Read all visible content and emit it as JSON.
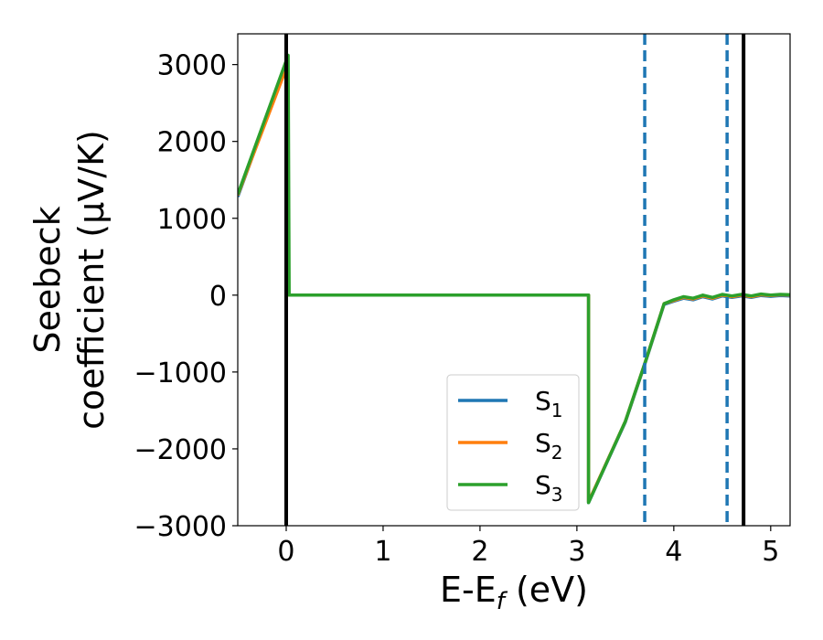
{
  "chart_data": {
    "type": "line",
    "xlabel": "E-E_f (eV)",
    "xlabel_parts": {
      "main": "E-E",
      "sub": "f",
      "unit": " (eV)"
    },
    "ylabel_lines": [
      "Seebeck",
      "coefficient  (μV/K)"
    ],
    "xlim": [
      -0.5,
      5.2
    ],
    "ylim": [
      -3000,
      3400
    ],
    "xticks": [
      0,
      1,
      2,
      3,
      4,
      5
    ],
    "xtick_labels": [
      "0",
      "1",
      "2",
      "3",
      "4",
      "5"
    ],
    "yticks": [
      -3000,
      -2000,
      -1000,
      0,
      1000,
      2000,
      3000
    ],
    "ytick_labels": [
      "−3000",
      "−2000",
      "−1000",
      "0",
      "1000",
      "2000",
      "3000"
    ],
    "grid": false,
    "legend_position": "lower-center",
    "series": [
      {
        "name": "S1",
        "label_main": "S",
        "label_sub": "1",
        "color": "#1f77b4",
        "points": [
          [
            -0.5,
            1280
          ],
          [
            0.0,
            3000
          ],
          [
            0.01,
            3050
          ],
          [
            0.02,
            0
          ],
          [
            3.12,
            0
          ],
          [
            3.12,
            -2700
          ],
          [
            3.5,
            -1650
          ],
          [
            3.7,
            -900
          ],
          [
            3.9,
            -120
          ],
          [
            4.0,
            -80
          ],
          [
            4.1,
            -40
          ],
          [
            4.2,
            -60
          ],
          [
            4.3,
            -20
          ],
          [
            4.4,
            -50
          ],
          [
            4.5,
            -10
          ],
          [
            4.6,
            -30
          ],
          [
            4.7,
            -10
          ],
          [
            4.8,
            -30
          ],
          [
            4.9,
            -5
          ],
          [
            5.0,
            -15
          ],
          [
            5.1,
            -5
          ],
          [
            5.2,
            -10
          ]
        ]
      },
      {
        "name": "S2",
        "label_main": "S",
        "label_sub": "2",
        "color": "#ff7f0e",
        "points": [
          [
            -0.5,
            1300
          ],
          [
            0.0,
            2950
          ],
          [
            0.01,
            3000
          ],
          [
            0.02,
            0
          ],
          [
            3.12,
            0
          ],
          [
            3.12,
            -2690
          ],
          [
            3.5,
            -1640
          ],
          [
            3.7,
            -890
          ],
          [
            3.9,
            -110
          ],
          [
            4.0,
            -70
          ],
          [
            4.1,
            -30
          ],
          [
            4.2,
            -50
          ],
          [
            4.3,
            -10
          ],
          [
            4.4,
            -40
          ],
          [
            4.5,
            0
          ],
          [
            4.6,
            -20
          ],
          [
            4.7,
            0
          ],
          [
            4.8,
            -20
          ],
          [
            4.9,
            5
          ],
          [
            5.0,
            -5
          ],
          [
            5.1,
            5
          ],
          [
            5.2,
            0
          ]
        ]
      },
      {
        "name": "S3",
        "label_main": "S",
        "label_sub": "3",
        "color": "#2ca02c",
        "points": [
          [
            -0.5,
            1310
          ],
          [
            0.0,
            3050
          ],
          [
            0.01,
            3100
          ],
          [
            0.02,
            3120
          ],
          [
            0.03,
            0
          ],
          [
            3.12,
            0
          ],
          [
            3.12,
            -2700
          ],
          [
            3.5,
            -1640
          ],
          [
            3.7,
            -890
          ],
          [
            3.9,
            -110
          ],
          [
            4.0,
            -60
          ],
          [
            4.1,
            -20
          ],
          [
            4.2,
            -40
          ],
          [
            4.3,
            0
          ],
          [
            4.4,
            -30
          ],
          [
            4.5,
            10
          ],
          [
            4.6,
            -10
          ],
          [
            4.7,
            10
          ],
          [
            4.8,
            -10
          ],
          [
            4.9,
            15
          ],
          [
            5.0,
            0
          ],
          [
            5.1,
            10
          ],
          [
            5.2,
            5
          ]
        ]
      }
    ],
    "vlines": [
      {
        "x": 0.0,
        "style": "solid",
        "color": "#000000"
      },
      {
        "x": 4.72,
        "style": "solid",
        "color": "#000000"
      },
      {
        "x": 3.7,
        "style": "dashed",
        "color": "#1f77b4"
      },
      {
        "x": 4.55,
        "style": "dashed",
        "color": "#1f77b4"
      }
    ]
  }
}
